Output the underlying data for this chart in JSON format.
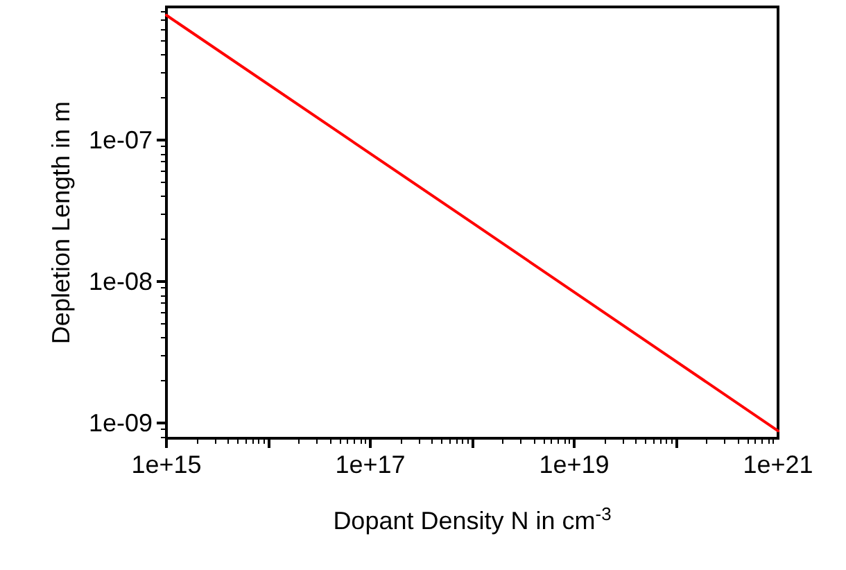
{
  "chart_data": {
    "type": "line",
    "xlabel": "Dopant Density N in cm$^{-3}$",
    "ylabel": "Depletion Length in m",
    "log": "xy",
    "grid": false,
    "marker": "none",
    "line_style": "solid",
    "xlim": [
      1000000000000000.0,
      1e+21
    ],
    "ylim": [
      7.8e-10,
      8.7e-07
    ],
    "xticks": [
      {
        "value": 1000000000000000.0,
        "label": "1e+15"
      },
      {
        "value": 1e+16,
        "label": null
      },
      {
        "value": 1e+17,
        "label": "1e+17"
      },
      {
        "value": 1e+18,
        "label": null
      },
      {
        "value": 1e+19,
        "label": "1e+19"
      },
      {
        "value": 1e+20,
        "label": null
      },
      {
        "value": 1e+21,
        "label": "1e+21"
      }
    ],
    "yticks": [
      {
        "value": 1e-09,
        "label": "1e-09"
      },
      {
        "value": 1e-08,
        "label": "1e-08"
      },
      {
        "value": 1e-07,
        "label": "1e-07"
      }
    ],
    "series": [
      {
        "color": "#ff0000",
        "x": [
          1000000000000000.0,
          1e+18,
          1e+21
        ],
        "values": [
          7.6e-07,
          2.6e-08,
          8.8e-10
        ]
      }
    ]
  }
}
